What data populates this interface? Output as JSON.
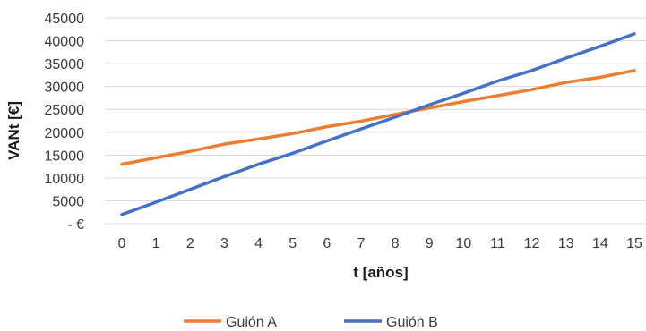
{
  "chart_data": {
    "type": "line",
    "title": "",
    "xlabel": "t [años]",
    "ylabel": "VANt [€]",
    "x": [
      0,
      1,
      2,
      3,
      4,
      5,
      6,
      7,
      8,
      9,
      10,
      11,
      12,
      13,
      14,
      15
    ],
    "xlim": [
      0,
      15
    ],
    "ylim": [
      0,
      45000
    ],
    "y_ticks": [
      0,
      5000,
      10000,
      15000,
      20000,
      25000,
      30000,
      35000,
      40000,
      45000
    ],
    "y_tick_labels": [
      "-  €",
      "5000",
      "10000",
      "15000",
      "20000",
      "25000",
      "30000",
      "35000",
      "40000",
      "45000"
    ],
    "grid": "horizontal",
    "legend_position": "bottom",
    "series": [
      {
        "name": "Guión A",
        "color": "#ed7d31",
        "values": [
          13000,
          14400,
          15800,
          17400,
          18500,
          19700,
          21200,
          22400,
          23900,
          25300,
          26700,
          28000,
          29300,
          30900,
          32000,
          33500
        ]
      },
      {
        "name": "Guión B",
        "color": "#4472c4",
        "values": [
          2000,
          4700,
          7500,
          10300,
          13000,
          15400,
          18100,
          20700,
          23300,
          26000,
          28500,
          31200,
          33500,
          36200,
          38800,
          41500
        ]
      }
    ]
  }
}
